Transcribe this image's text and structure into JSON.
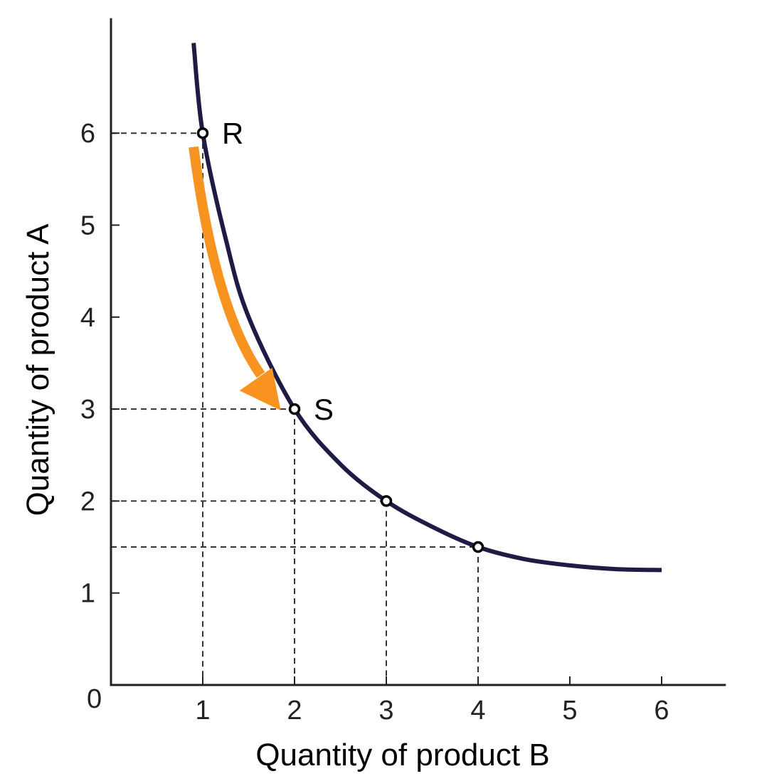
{
  "chart_data": {
    "type": "line",
    "xlabel": "Quantity of product B",
    "ylabel": "Quantity of product  A",
    "origin_label": "0",
    "xlim": [
      0,
      6.7
    ],
    "ylim": [
      0,
      7.25
    ],
    "x_ticks": [
      1,
      2,
      3,
      4,
      5,
      6
    ],
    "y_ticks": [
      1,
      2,
      3,
      4,
      5,
      6
    ],
    "x_tick_labels": [
      "1",
      "2",
      "3",
      "4",
      "5",
      "6"
    ],
    "y_tick_labels": [
      "1",
      "2",
      "3",
      "4",
      "5",
      "6"
    ],
    "grid": false,
    "series": [
      {
        "x": [
          0.9,
          1,
          1.25,
          1.5,
          2,
          2.5,
          3,
          3.5,
          4,
          4.5,
          5,
          5.5,
          6
        ],
        "y": [
          6.98,
          6,
          4.85,
          4.0,
          3,
          2.4,
          2,
          1.72,
          1.5,
          1.37,
          1.3,
          1.26,
          1.25
        ]
      }
    ],
    "points": [
      {
        "x": 1,
        "y": 6,
        "label": "R"
      },
      {
        "x": 2,
        "y": 3,
        "label": "S"
      },
      {
        "x": 3,
        "y": 2,
        "label": ""
      },
      {
        "x": 4,
        "y": 1.5,
        "label": ""
      }
    ],
    "arrow": {
      "from": [
        0.9,
        5.85
      ],
      "to": [
        1.85,
        3.0
      ]
    },
    "colors": {
      "curve": "#1e1b45",
      "arrow": "#f7931e",
      "axis": "#222222",
      "guide": "#333333"
    }
  }
}
